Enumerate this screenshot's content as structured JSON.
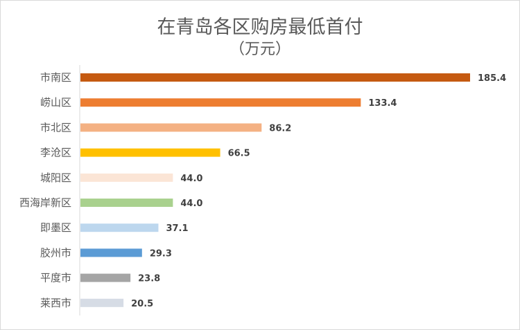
{
  "chart_data": {
    "type": "bar",
    "orientation": "horizontal",
    "title": "在青岛各区购房最低首付",
    "subtitle": "（万元）",
    "categories": [
      "市南区",
      "崂山区",
      "市北区",
      "李沧区",
      "城阳区",
      "西海岸新区",
      "即墨区",
      "胶州市",
      "平度市",
      "莱西市"
    ],
    "values": [
      185.4,
      133.4,
      86.2,
      66.5,
      44.0,
      44.0,
      37.1,
      29.3,
      23.8,
      20.5
    ],
    "value_labels": [
      "185.4",
      "133.4",
      "86.2",
      "66.5",
      "44.0",
      "44.0",
      "37.1",
      "29.3",
      "23.8",
      "20.5"
    ],
    "colors": [
      "#c55a11",
      "#ed7d31",
      "#f4b183",
      "#ffc000",
      "#fbe5d6",
      "#a9d18e",
      "#bdd7ee",
      "#5b9bd5",
      "#a5a5a5",
      "#d6dce5"
    ],
    "xlabel": "",
    "ylabel": "",
    "xlim": [
      0,
      185.4
    ],
    "grid": false,
    "legend": "none"
  }
}
